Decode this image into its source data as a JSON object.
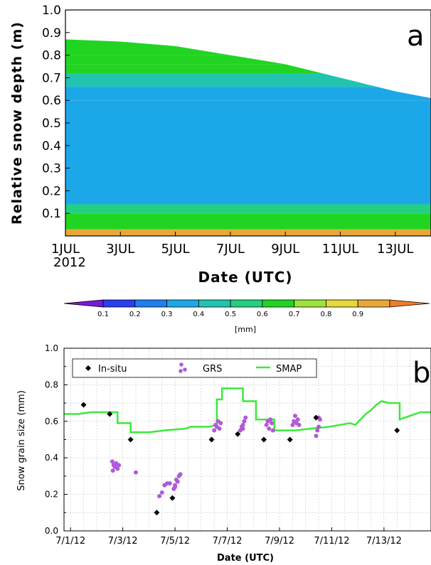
{
  "chart_data": [
    {
      "panel": "a",
      "type": "heatmap",
      "xlabel": "Date (UTC)",
      "ylabel": "Relative snow depth (m)",
      "ylim": [
        0,
        1.0
      ],
      "y_ticks": [
        "0.1",
        "0.2",
        "0.3",
        "0.4",
        "0.5",
        "0.6",
        "0.7",
        "0.8",
        "0.9",
        "1.0"
      ],
      "x_ticks": [
        "1JUL",
        "3JUL",
        "5JUL",
        "7JUL",
        "9JUL",
        "11JUL",
        "13JUL"
      ],
      "x_tick_values": [
        1,
        3,
        5,
        7,
        9,
        11,
        13
      ],
      "xlim": [
        1,
        14.3
      ],
      "x_year_label": "2012",
      "colorbar": {
        "unit": "[mm]",
        "ticks": [
          "0.1",
          "0.2",
          "0.3",
          "0.4",
          "0.5",
          "0.6",
          "0.7",
          "0.8",
          "0.9"
        ],
        "colors": [
          "#7a1ad8",
          "#2a3ff0",
          "#1e7ef0",
          "#1ca8e8",
          "#22c4b0",
          "#22d080",
          "#22d422",
          "#9ce43a",
          "#e4d83a",
          "#e8a838",
          "#f07c28"
        ]
      },
      "layers": [
        {
          "y0": 0.0,
          "y1": 0.03,
          "value": 0.9
        },
        {
          "y0": 0.03,
          "y1": 0.1,
          "value": 0.6
        },
        {
          "y0": 0.1,
          "y1": 0.14,
          "value": 0.5
        },
        {
          "y0": 0.14,
          "y1": 0.6,
          "value": 0.35
        },
        {
          "y0": 0.6,
          "y1": 0.66,
          "value": 0.3
        },
        {
          "y0": 0.66,
          "y1": 0.72,
          "value": 0.45
        },
        {
          "y0": 0.72,
          "y1": 0.76,
          "value": 0.6
        },
        {
          "y0": 0.76,
          "y1": 0.8,
          "value": 0.65
        },
        {
          "y0": 0.8,
          "y1": 0.87,
          "value": 0.6
        }
      ],
      "surface": [
        [
          1,
          0.87
        ],
        [
          3,
          0.86
        ],
        [
          5,
          0.84
        ],
        [
          7,
          0.8
        ],
        [
          9,
          0.76
        ],
        [
          11,
          0.7
        ],
        [
          13,
          0.64
        ],
        [
          14.3,
          0.61
        ]
      ]
    },
    {
      "panel": "b",
      "type": "line",
      "xlabel": "Date (UTC)",
      "ylabel": "Snow grain size (mm)",
      "ylim": [
        0,
        1.0
      ],
      "xlim": [
        0.75,
        14.8
      ],
      "y_ticks": [
        "0.0",
        "0.2",
        "0.4",
        "0.6",
        "0.8",
        "1.0"
      ],
      "x_ticks": [
        "7/1/12",
        "7/3/12",
        "7/5/12",
        "7/7/12",
        "7/9/12",
        "7/11/12",
        "7/13/12"
      ],
      "x_tick_values": [
        1,
        3,
        5,
        7,
        9,
        11,
        13
      ],
      "legend": {
        "placement": "top-left"
      },
      "series": [
        {
          "name": "In-situ",
          "style": "diamond",
          "color": "#000000",
          "points": [
            [
              1.5,
              0.69
            ],
            [
              2.5,
              0.64
            ],
            [
              3.3,
              0.5
            ],
            [
              4.3,
              0.1
            ],
            [
              4.9,
              0.18
            ],
            [
              6.4,
              0.5
            ],
            [
              7.4,
              0.53
            ],
            [
              8.4,
              0.5
            ],
            [
              9.4,
              0.5
            ],
            [
              10.4,
              0.62
            ],
            [
              13.5,
              0.55
            ]
          ]
        },
        {
          "name": "GRS",
          "style": "dot",
          "color": "#b05ad8",
          "points": [
            [
              2.6,
              0.38
            ],
            [
              2.65,
              0.36
            ],
            [
              2.7,
              0.35
            ],
            [
              2.75,
              0.37
            ],
            [
              2.8,
              0.34
            ],
            [
              2.85,
              0.36
            ],
            [
              2.62,
              0.33
            ],
            [
              3.5,
              0.32
            ],
            [
              4.4,
              0.19
            ],
            [
              4.5,
              0.21
            ],
            [
              4.6,
              0.25
            ],
            [
              4.7,
              0.26
            ],
            [
              4.8,
              0.26
            ],
            [
              4.95,
              0.23
            ],
            [
              5.0,
              0.25
            ],
            [
              5.05,
              0.28
            ],
            [
              5.1,
              0.27
            ],
            [
              5.15,
              0.3
            ],
            [
              5.2,
              0.31
            ],
            [
              5.0,
              0.24
            ],
            [
              6.5,
              0.55
            ],
            [
              6.55,
              0.58
            ],
            [
              6.6,
              0.57
            ],
            [
              6.65,
              0.6
            ],
            [
              6.7,
              0.56
            ],
            [
              6.75,
              0.59
            ],
            [
              7.5,
              0.55
            ],
            [
              7.55,
              0.57
            ],
            [
              7.6,
              0.58
            ],
            [
              7.65,
              0.6
            ],
            [
              7.7,
              0.62
            ],
            [
              7.6,
              0.56
            ],
            [
              8.5,
              0.58
            ],
            [
              8.55,
              0.6
            ],
            [
              8.6,
              0.56
            ],
            [
              8.65,
              0.61
            ],
            [
              8.7,
              0.59
            ],
            [
              8.75,
              0.55
            ],
            [
              9.5,
              0.58
            ],
            [
              9.55,
              0.6
            ],
            [
              9.6,
              0.63
            ],
            [
              9.65,
              0.59
            ],
            [
              9.7,
              0.61
            ],
            [
              9.75,
              0.58
            ],
            [
              10.4,
              0.52
            ],
            [
              10.45,
              0.55
            ],
            [
              10.5,
              0.57
            ],
            [
              10.55,
              0.61
            ],
            [
              10.5,
              0.62
            ]
          ]
        },
        {
          "name": "SMAP",
          "style": "line",
          "color": "#3ce83c",
          "points": [
            [
              0.75,
              0.64
            ],
            [
              1.3,
              0.64
            ],
            [
              1.8,
              0.65
            ],
            [
              2.8,
              0.65
            ],
            [
              2.8,
              0.59
            ],
            [
              3.3,
              0.59
            ],
            [
              3.3,
              0.54
            ],
            [
              4.0,
              0.54
            ],
            [
              4.6,
              0.55
            ],
            [
              5.4,
              0.56
            ],
            [
              5.6,
              0.57
            ],
            [
              6.3,
              0.57
            ],
            [
              6.6,
              0.58
            ],
            [
              6.6,
              0.72
            ],
            [
              6.8,
              0.72
            ],
            [
              6.8,
              0.78
            ],
            [
              7.6,
              0.78
            ],
            [
              7.6,
              0.71
            ],
            [
              8.1,
              0.71
            ],
            [
              8.1,
              0.61
            ],
            [
              8.8,
              0.61
            ],
            [
              8.8,
              0.55
            ],
            [
              9.6,
              0.55
            ],
            [
              10.2,
              0.56
            ],
            [
              10.9,
              0.57
            ],
            [
              11.3,
              0.58
            ],
            [
              11.7,
              0.59
            ],
            [
              11.9,
              0.58
            ],
            [
              12.1,
              0.61
            ],
            [
              12.3,
              0.64
            ],
            [
              12.5,
              0.66
            ],
            [
              12.7,
              0.69
            ],
            [
              12.9,
              0.71
            ],
            [
              13.2,
              0.7
            ],
            [
              13.6,
              0.7
            ],
            [
              13.6,
              0.61
            ],
            [
              14.0,
              0.63
            ],
            [
              14.4,
              0.65
            ],
            [
              14.8,
              0.65
            ]
          ]
        }
      ]
    }
  ]
}
